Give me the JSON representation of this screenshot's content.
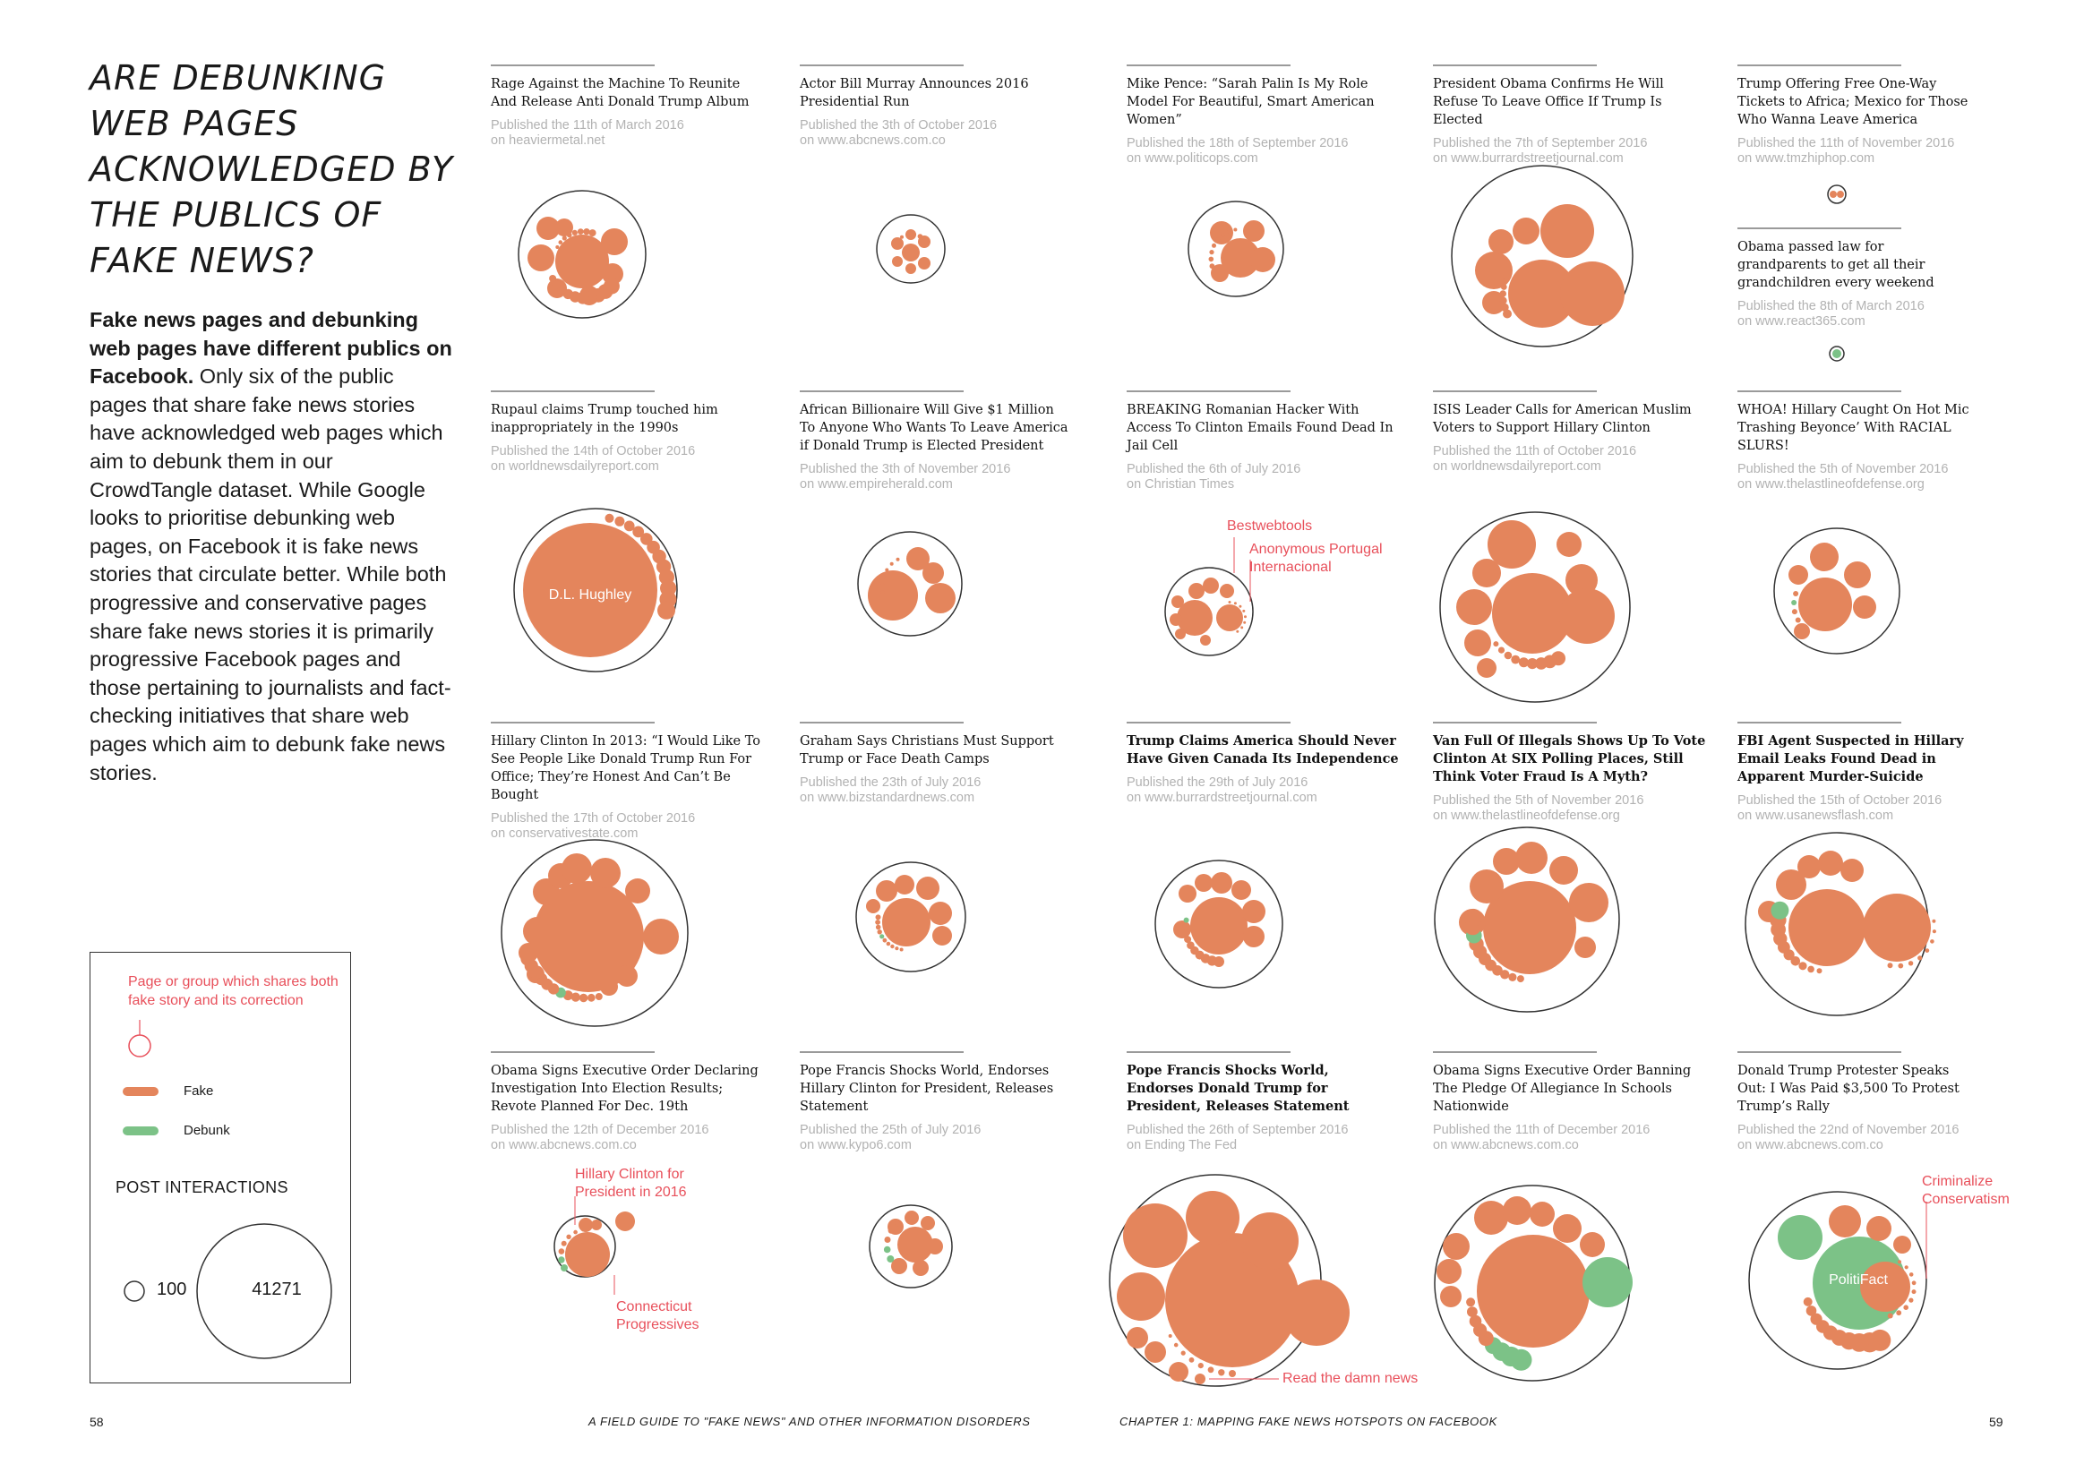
{
  "title": "ARE DEBUNKING WEB PAGES ACKNOWLEDGED BY THE PUBLICS OF FAKE NEWS?",
  "intro": {
    "bold": "Fake news pages and debunking web pages have different publics on Facebook.",
    "body": " Only six of the public pages that share fake news stories have acknowledged web pages which aim to debunk them in our CrowdTangle dataset. While Google looks to prioritise debunking web pages, on Facebook it is fake news stories that circulate better. While both progressive and conservative pages share fake news stories it is primarily progressive Facebook pages and those pertaining to journalists and fact-checking initiatives that share web pages which aim to debunk fake news stories."
  },
  "legend": {
    "note": "Page or group which shares both fake story and its correction",
    "fake_label": "Fake",
    "debunk_label": "Debunk",
    "interactions_title": "POST INTERACTIONS",
    "small_value": "100",
    "large_value": "41271"
  },
  "colors": {
    "fake": "#e4855c",
    "debunk": "#7cc287",
    "annotation": "#e8505b",
    "outline": "#333333"
  },
  "stories": [
    {
      "headline": "Rage Against the Machine To Reunite And Release Anti Donald Trump Album",
      "published": "Published the 11th of March 2016",
      "site": "on heaviermetal.net",
      "bold": false
    },
    {
      "headline": "Actor Bill Murray Announces 2016 Presidential Run",
      "published": "Published the 3th of October 2016",
      "site": "on www.abcnews.com.co",
      "bold": false
    },
    {
      "headline": "Mike Pence: “Sarah Palin Is My Role Model For Beautiful, Smart American Women”",
      "published": "Published the 18th of September 2016",
      "site": "on www.politicops.com",
      "bold": false
    },
    {
      "headline": "President Obama Confirms He Will Refuse To Leave Office If Trump Is Elected",
      "published": "Published the 7th of September 2016",
      "site": "on www.burrardstreetjournal.com",
      "bold": false
    },
    {
      "headline": "Trump Offering Free One-Way Tickets to Africa; Mexico for Those Who Wanna Leave America",
      "published": "Published the 11th of November 2016",
      "site": "on www.tmzhiphop.com",
      "bold": false
    },
    {
      "headline": "Obama passed law for grandparents to get all their grandchildren every weekend",
      "published": "Published the 8th of March 2016",
      "site": "on www.react365.com",
      "bold": false
    },
    {
      "headline": "Rupaul claims Trump touched him inappropriately in the 1990s",
      "published": "Published the 14th of October 2016",
      "site": "on worldnewsdailyreport.com",
      "bold": false
    },
    {
      "headline": "African Billionaire Will Give $1 Million To Anyone Who Wants To Leave America if Donald Trump is Elected President",
      "published": "Published the 3th of November 2016",
      "site": "on www.empireherald.com",
      "bold": false
    },
    {
      "headline": "BREAKING Romanian Hacker With Access To Clinton Emails Found Dead In Jail Cell",
      "published": "Published the 6th of July 2016",
      "site": "on Christian Times",
      "bold": false
    },
    {
      "headline": "ISIS Leader Calls for American Muslim Voters to Support Hillary Clinton",
      "published": "Published the 11th of October 2016",
      "site": "on worldnewsdailyreport.com",
      "bold": false
    },
    {
      "headline": "WHOA! Hillary Caught On Hot Mic Trashing Beyonce’ With RACIAL SLURS!",
      "published": "Published the 5th of November 2016",
      "site": "on www.thelastlineofdefense.org",
      "bold": false
    },
    {
      "headline": "Hillary Clinton In 2013: “I Would Like To See People Like Donald Trump Run For Office; They’re Honest And Can’t Be Bought",
      "published": "Published the 17th of October 2016",
      "site": "on conservativestate.com",
      "bold": false
    },
    {
      "headline": "Graham Says Christians Must Support Trump or Face Death Camps",
      "published": "Published the 23th of July 2016",
      "site": "on www.bizstandardnews.com",
      "bold": false
    },
    {
      "headline": "Trump Claims America Should Never Have Given Canada Its Independence",
      "published": "Published the 29th of July 2016",
      "site": "on www.burrardstreetjournal.com",
      "bold": false
    },
    {
      "headline": "Van Full Of Illegals Shows Up To Vote Clinton At SIX Polling Places, Still Think Voter Fraud Is A Myth?",
      "published": "Published the 5th of November 2016",
      "site": "on www.thelastlineofdefense.org",
      "bold": false
    },
    {
      "headline": "FBI Agent Suspected in Hillary Email Leaks Found Dead in Apparent Murder-Suicide",
      "published": "Published the 15th of October 2016",
      "site": "on www.usanewsflash.com",
      "bold": false
    },
    {
      "headline": "Obama Signs Executive Order Declaring Investigation Into Election Results; Revote Planned For Dec. 19th",
      "published": "Published the 12th of December 2016",
      "site": "on www.abcnews.com.co",
      "bold": false
    },
    {
      "headline": "Pope Francis Shocks World, Endorses Hillary Clinton for President, Releases Statement",
      "published": "Published the 25th of July 2016",
      "site": "on www.kypo6.com",
      "bold": false
    },
    {
      "headline": "Pope Francis Shocks World, Endorses Donald Trump for President, Releases Statement",
      "published": "Published the 26th of September 2016",
      "site": "on Ending The Fed",
      "bold": true
    },
    {
      "headline": "Obama Signs Executive Order Banning The Pledge Of Allegiance In Schools Nationwide",
      "published": "Published the 11th of December 2016",
      "site": "on www.abcnews.com.co",
      "bold": false
    },
    {
      "headline": "Donald Trump Protester Speaks Out: I Was Paid $3,500 To Protest Trump’s Rally",
      "published": "Published the 22nd of November 2016",
      "site": "on www.abcnews.com.co",
      "bold": false
    }
  ],
  "annotations": {
    "dl_hughley": "D.L. Hughley",
    "bestwebtools": "Bestwebtools",
    "anonymous_portugal": "Anonymous Portugal Internacional",
    "hillary_2016": "Hillary Clinton for President in 2016",
    "connecticut": "Connecticut Progressives",
    "read_damn_news": "Read the damn news",
    "politifact": "PolitiFact",
    "criminalize": "Criminalize Conservatism"
  },
  "footer": {
    "left_page": "58",
    "right_page": "59",
    "left_text": "A FIELD GUIDE TO \"FAKE NEWS\" AND OTHER INFORMATION DISORDERS",
    "right_text": "CHAPTER 1: MAPPING FAKE NEWS HOTSPOTS  ON FACEBOOK"
  }
}
